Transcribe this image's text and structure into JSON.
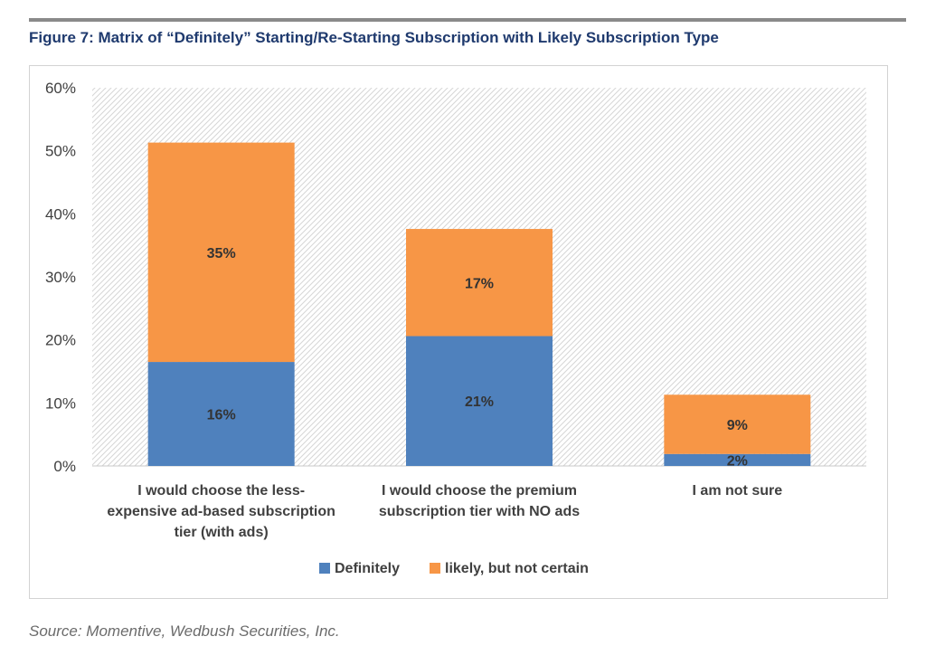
{
  "figure": {
    "title": "Figure 7: Matrix of “Definitely” Starting/Re-Starting Subscription with Likely Subscription Type",
    "source": "Source: Momentive, Wedbush Securities, Inc."
  },
  "colors": {
    "title": "#1f3a6e",
    "definitely": "#4f81bd",
    "likely": "#f79646",
    "axis_text": "#404040",
    "label_text": "#333333"
  },
  "chart_data": {
    "type": "bar",
    "stacked": true,
    "categories": [
      "I would choose the less-expensive ad-based subscription tier (with ads)",
      "I would choose the premium subscription tier with NO ads",
      "I am not sure"
    ],
    "category_label_lines": [
      [
        "I would choose the less-",
        "expensive ad-based subscription",
        "tier (with ads)"
      ],
      [
        "I would choose the premium",
        "subscription tier with NO ads"
      ],
      [
        "I am not sure"
      ]
    ],
    "series": [
      {
        "name": "Definitely",
        "values": [
          16.5,
          20.6,
          1.9
        ],
        "labels": [
          "16%",
          "21%",
          "2%"
        ]
      },
      {
        "name": "likely, but not certain",
        "values": [
          34.8,
          17.0,
          9.4
        ],
        "labels": [
          "35%",
          "17%",
          "9%"
        ]
      }
    ],
    "y_ticks": [
      "0%",
      "10%",
      "20%",
      "30%",
      "40%",
      "50%",
      "60%"
    ],
    "ylim": [
      0,
      60
    ],
    "gridlines": false,
    "plot_background": "hatched",
    "legend_position": "bottom"
  }
}
